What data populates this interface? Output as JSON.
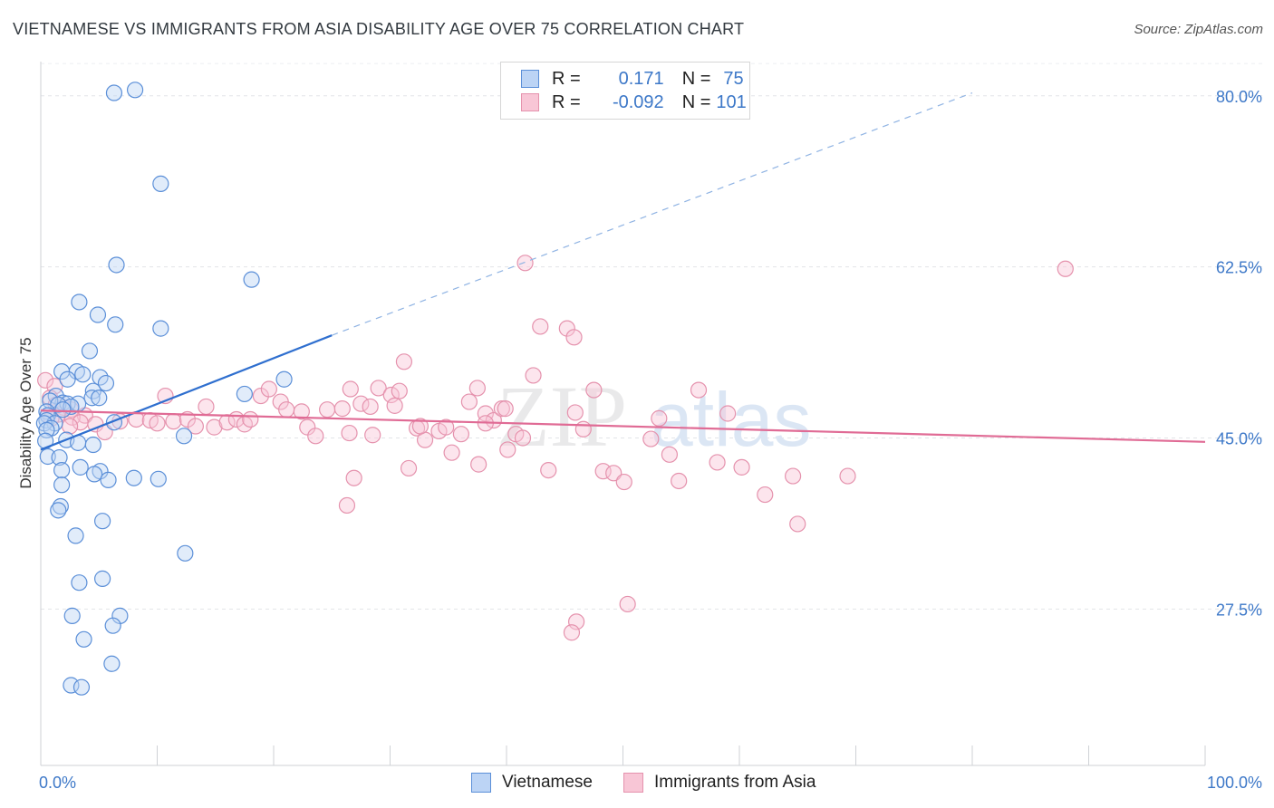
{
  "title": "VIETNAMESE VS IMMIGRANTS FROM ASIA DISABILITY AGE OVER 75 CORRELATION CHART",
  "source": "Source: ZipAtlas.com",
  "watermark": {
    "zip": "ZIP",
    "atlas": "atlas"
  },
  "legend": {
    "rows": [
      {
        "r_label": "R =",
        "r_value": "0.171",
        "n_label": "N =",
        "n_value": "75"
      },
      {
        "r_label": "R =",
        "r_value": "-0.092",
        "n_label": "N =",
        "n_value": "101"
      }
    ]
  },
  "bottom_legend": {
    "series1": "Vietnamese",
    "series2": "Immigrants from Asia"
  },
  "chart_data": {
    "type": "scatter",
    "title": "VIETNAMESE VS IMMIGRANTS FROM ASIA DISABILITY AGE OVER 75 CORRELATION CHART",
    "xlabel": "",
    "ylabel": "Disability Age Over 75",
    "xlim": [
      0,
      100
    ],
    "ylim": [
      11.5,
      83.5
    ],
    "x_tick_labels": [
      "0.0%",
      "100.0%"
    ],
    "y_ticks": [
      {
        "value": 80,
        "label": "80.0%"
      },
      {
        "value": 62.5,
        "label": "62.5%"
      },
      {
        "value": 45,
        "label": "45.0%"
      },
      {
        "value": 27.5,
        "label": "27.5%"
      }
    ],
    "grid": "horizontal dashed",
    "legend_placement": "top-center",
    "colors": {
      "vietnamese_fill": "#bcd4f5",
      "vietnamese_stroke": "#5b8fd8",
      "vietnamese_line": "#2f6fcf",
      "asia_fill": "#f8c6d6",
      "asia_stroke": "#e592ad",
      "asia_line": "#e06b95",
      "tick": "#3d78c8"
    },
    "series": [
      {
        "name": "Vietnamese",
        "trend": {
          "x": [
            0,
            25
          ],
          "y": [
            43.8,
            55.5
          ],
          "dashed_to": [
            80,
            80.3
          ]
        },
        "points": [
          [
            6.3,
            80.3
          ],
          [
            8.1,
            80.6
          ],
          [
            10.3,
            71.0
          ],
          [
            6.5,
            62.7
          ],
          [
            18.1,
            61.2
          ],
          [
            3.3,
            58.9
          ],
          [
            4.9,
            57.6
          ],
          [
            6.4,
            56.6
          ],
          [
            10.3,
            56.2
          ],
          [
            4.2,
            53.9
          ],
          [
            1.8,
            51.8
          ],
          [
            3.1,
            51.8
          ],
          [
            3.6,
            51.5
          ],
          [
            5.1,
            51.2
          ],
          [
            2.3,
            51.0
          ],
          [
            20.9,
            51.0
          ],
          [
            5.6,
            50.6
          ],
          [
            4.5,
            49.8
          ],
          [
            17.5,
            49.5
          ],
          [
            1.3,
            49.3
          ],
          [
            4.4,
            49.1
          ],
          [
            5.0,
            49.1
          ],
          [
            1.9,
            48.6
          ],
          [
            2.3,
            48.5
          ],
          [
            3.2,
            48.5
          ],
          [
            0.8,
            48.8
          ],
          [
            1.5,
            48.4
          ],
          [
            2.6,
            48.2
          ],
          [
            1.9,
            47.9
          ],
          [
            0.5,
            47.7
          ],
          [
            0.6,
            47.3
          ],
          [
            0.5,
            46.8
          ],
          [
            6.3,
            46.6
          ],
          [
            1.2,
            46.5
          ],
          [
            0.3,
            46.5
          ],
          [
            0.9,
            46.0
          ],
          [
            0.5,
            45.8
          ],
          [
            12.3,
            45.2
          ],
          [
            2.2,
            44.8
          ],
          [
            3.2,
            44.5
          ],
          [
            4.5,
            44.3
          ],
          [
            0.4,
            44.7
          ],
          [
            0.6,
            43.1
          ],
          [
            1.6,
            43.0
          ],
          [
            3.4,
            42.0
          ],
          [
            1.8,
            41.7
          ],
          [
            5.1,
            41.6
          ],
          [
            4.6,
            41.3
          ],
          [
            8.0,
            40.9
          ],
          [
            10.1,
            40.8
          ],
          [
            5.8,
            40.7
          ],
          [
            1.8,
            40.2
          ],
          [
            1.7,
            38.0
          ],
          [
            1.5,
            37.6
          ],
          [
            5.3,
            36.5
          ],
          [
            3.0,
            35.0
          ],
          [
            12.4,
            33.2
          ],
          [
            5.3,
            30.6
          ],
          [
            3.3,
            30.2
          ],
          [
            2.7,
            26.8
          ],
          [
            6.8,
            26.8
          ],
          [
            6.2,
            25.8
          ],
          [
            3.7,
            24.4
          ],
          [
            6.1,
            21.9
          ],
          [
            2.6,
            19.7
          ],
          [
            3.5,
            19.5
          ]
        ]
      },
      {
        "name": "Immigrants from Asia",
        "trend": {
          "x": [
            0,
            100
          ],
          "y": [
            47.8,
            44.6
          ]
        },
        "points": [
          [
            0.4,
            50.9
          ],
          [
            1.2,
            50.3
          ],
          [
            0.8,
            49.1
          ],
          [
            1.3,
            48.4
          ],
          [
            2.0,
            48.1
          ],
          [
            2.6,
            47.9
          ],
          [
            1.5,
            47.4
          ],
          [
            3.8,
            47.3
          ],
          [
            2.7,
            47.1
          ],
          [
            0.9,
            47.0
          ],
          [
            3.4,
            46.6
          ],
          [
            4.7,
            46.4
          ],
          [
            2.5,
            46.2
          ],
          [
            6.8,
            46.7
          ],
          [
            5.5,
            45.6
          ],
          [
            8.2,
            46.9
          ],
          [
            9.4,
            46.8
          ],
          [
            10.0,
            46.5
          ],
          [
            10.7,
            49.3
          ],
          [
            11.4,
            46.7
          ],
          [
            12.6,
            46.9
          ],
          [
            13.3,
            46.2
          ],
          [
            14.2,
            48.2
          ],
          [
            14.9,
            46.1
          ],
          [
            16.0,
            46.6
          ],
          [
            16.8,
            46.9
          ],
          [
            17.5,
            46.4
          ],
          [
            18.0,
            46.9
          ],
          [
            18.9,
            49.3
          ],
          [
            19.6,
            50.0
          ],
          [
            20.6,
            48.7
          ],
          [
            21.1,
            47.9
          ],
          [
            22.4,
            47.7
          ],
          [
            22.9,
            46.1
          ],
          [
            23.6,
            45.2
          ],
          [
            24.6,
            47.9
          ],
          [
            25.9,
            48.0
          ],
          [
            26.6,
            50.0
          ],
          [
            27.5,
            48.5
          ],
          [
            28.5,
            45.3
          ],
          [
            29.0,
            50.1
          ],
          [
            30.1,
            49.4
          ],
          [
            30.8,
            49.8
          ],
          [
            31.2,
            52.8
          ],
          [
            30.4,
            48.3
          ],
          [
            32.3,
            46.0
          ],
          [
            33.0,
            44.8
          ],
          [
            34.2,
            45.7
          ],
          [
            34.8,
            46.1
          ],
          [
            35.3,
            43.5
          ],
          [
            36.1,
            45.4
          ],
          [
            36.8,
            48.7
          ],
          [
            37.5,
            50.1
          ],
          [
            38.2,
            47.5
          ],
          [
            38.9,
            46.8
          ],
          [
            39.6,
            48.0
          ],
          [
            40.1,
            43.8
          ],
          [
            40.8,
            45.4
          ],
          [
            41.4,
            45.0
          ],
          [
            42.3,
            51.4
          ],
          [
            42.9,
            56.4
          ],
          [
            43.6,
            41.7
          ],
          [
            45.2,
            56.2
          ],
          [
            45.9,
            47.6
          ],
          [
            46.6,
            45.9
          ],
          [
            47.5,
            49.9
          ],
          [
            48.3,
            41.6
          ],
          [
            49.2,
            41.4
          ],
          [
            50.1,
            40.5
          ],
          [
            45.8,
            55.3
          ],
          [
            52.4,
            44.9
          ],
          [
            53.1,
            47.0
          ],
          [
            54.0,
            43.3
          ],
          [
            54.8,
            40.6
          ],
          [
            56.5,
            49.9
          ],
          [
            58.1,
            42.5
          ],
          [
            59.0,
            47.5
          ],
          [
            60.2,
            42.0
          ],
          [
            62.2,
            39.2
          ],
          [
            41.6,
            62.9
          ],
          [
            64.6,
            41.1
          ],
          [
            65.0,
            36.2
          ],
          [
            69.3,
            41.1
          ],
          [
            88.0,
            62.3
          ],
          [
            26.3,
            38.1
          ],
          [
            26.9,
            40.9
          ],
          [
            26.5,
            45.5
          ],
          [
            28.3,
            48.2
          ],
          [
            32.6,
            46.2
          ],
          [
            38.2,
            46.5
          ],
          [
            39.9,
            48.0
          ],
          [
            50.4,
            28.0
          ],
          [
            46.0,
            26.2
          ],
          [
            45.6,
            25.1
          ],
          [
            37.6,
            42.3
          ],
          [
            31.6,
            41.9
          ]
        ]
      }
    ]
  }
}
